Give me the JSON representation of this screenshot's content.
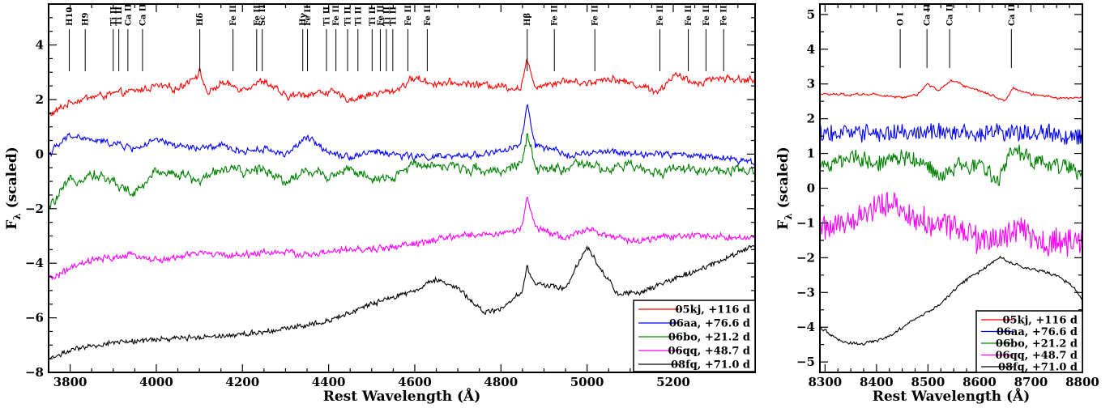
{
  "chart_data": [
    {
      "type": "line",
      "xlabel": "Rest Wavelength (Å)",
      "ylabel_main": "F",
      "ylabel_sub": "λ",
      "ylabel_suffix": " (scaled)",
      "xlim": [
        3750,
        5390
      ],
      "ylim": [
        -8,
        5.5
      ],
      "xticks": [
        3800,
        4000,
        4200,
        4400,
        4600,
        4800,
        5000,
        5200
      ],
      "yticks": [
        4,
        2,
        0,
        -2,
        -4,
        -6,
        -8
      ],
      "line_ids": [
        {
          "label": "H10",
          "x": 3798
        },
        {
          "label": "H9",
          "x": 3835
        },
        {
          "label": "Ti II",
          "x": 3900
        },
        {
          "label": "Ti II",
          "x": 3913
        },
        {
          "label": "Ca II",
          "x": 3934
        },
        {
          "label": "Ca II",
          "x": 3968
        },
        {
          "label": "Hδ",
          "x": 4101
        },
        {
          "label": "Fe II",
          "x": 4178
        },
        {
          "label": "Fe II",
          "x": 4233
        },
        {
          "label": "Sc II",
          "x": 4246
        },
        {
          "label": "Hγ",
          "x": 4340
        },
        {
          "label": "Fe II",
          "x": 4351
        },
        {
          "label": "Ti II",
          "x": 4395
        },
        {
          "label": "Fe II",
          "x": 4417
        },
        {
          "label": "Ti II",
          "x": 4444
        },
        {
          "label": "Ti II",
          "x": 4468
        },
        {
          "label": "Ti II",
          "x": 4501
        },
        {
          "label": "Fe II",
          "x": 4520
        },
        {
          "label": "Ti II",
          "x": 4534
        },
        {
          "label": "Ti II",
          "x": 4549
        },
        {
          "label": "Fe II",
          "x": 4584
        },
        {
          "label": "Fe II",
          "x": 4629
        },
        {
          "label": "Hβ",
          "x": 4861
        },
        {
          "label": "Fe II",
          "x": 4924
        },
        {
          "label": "Fe II",
          "x": 5018
        },
        {
          "label": "Fe II",
          "x": 5169
        },
        {
          "label": "Fe II",
          "x": 5235
        },
        {
          "label": "Fe II",
          "x": 5276
        },
        {
          "label": "Fe II",
          "x": 5317
        }
      ],
      "series": [
        {
          "name": "05kj, +116 d",
          "color": "#ff0000",
          "noise": 0.18,
          "freq": 0.55,
          "points": [
            [
              3750,
              1.4
            ],
            [
              3800,
              1.9
            ],
            [
              3850,
              2.1
            ],
            [
              3900,
              2.2
            ],
            [
              3950,
              2.3
            ],
            [
              4000,
              2.5
            ],
            [
              4050,
              2.4
            ],
            [
              4101,
              3.0
            ],
            [
              4120,
              2.2
            ],
            [
              4150,
              2.6
            ],
            [
              4200,
              2.4
            ],
            [
              4250,
              2.7
            ],
            [
              4300,
              2.1
            ],
            [
              4350,
              2.2
            ],
            [
              4400,
              2.3
            ],
            [
              4450,
              2.0
            ],
            [
              4500,
              2.2
            ],
            [
              4550,
              2.3
            ],
            [
              4600,
              2.8
            ],
            [
              4640,
              2.6
            ],
            [
              4700,
              2.6
            ],
            [
              4800,
              2.5
            ],
            [
              4845,
              2.4
            ],
            [
              4861,
              3.4
            ],
            [
              4880,
              2.5
            ],
            [
              4950,
              2.7
            ],
            [
              5000,
              2.6
            ],
            [
              5050,
              2.8
            ],
            [
              5100,
              2.6
            ],
            [
              5169,
              2.3
            ],
            [
              5200,
              2.9
            ],
            [
              5250,
              2.6
            ],
            [
              5300,
              2.8
            ],
            [
              5390,
              2.7
            ]
          ]
        },
        {
          "name": "06aa, +76.6 d",
          "color": "#0000ff",
          "noise": 0.16,
          "freq": 0.6,
          "points": [
            [
              3750,
              0.0
            ],
            [
              3800,
              0.7
            ],
            [
              3850,
              0.5
            ],
            [
              3900,
              0.4
            ],
            [
              3950,
              0.2
            ],
            [
              4000,
              0.5
            ],
            [
              4050,
              0.3
            ],
            [
              4100,
              0.2
            ],
            [
              4150,
              0.3
            ],
            [
              4200,
              0.1
            ],
            [
              4250,
              0.2
            ],
            [
              4300,
              0.0
            ],
            [
              4350,
              0.6
            ],
            [
              4400,
              0.1
            ],
            [
              4450,
              -0.1
            ],
            [
              4500,
              0.1
            ],
            [
              4550,
              0.0
            ],
            [
              4600,
              -0.1
            ],
            [
              4700,
              -0.1
            ],
            [
              4800,
              0.1
            ],
            [
              4845,
              0.3
            ],
            [
              4861,
              1.8
            ],
            [
              4880,
              0.3
            ],
            [
              4950,
              0.0
            ],
            [
              5000,
              0.0
            ],
            [
              5050,
              0.1
            ],
            [
              5100,
              0.0
            ],
            [
              5200,
              0.0
            ],
            [
              5300,
              -0.1
            ],
            [
              5390,
              -0.3
            ]
          ]
        },
        {
          "name": "06bo, +21.2 d",
          "color": "#008000",
          "noise": 0.3,
          "freq": 0.42,
          "points": [
            [
              3750,
              -2.0
            ],
            [
              3800,
              -1.0
            ],
            [
              3850,
              -0.7
            ],
            [
              3900,
              -1.0
            ],
            [
              3950,
              -1.5
            ],
            [
              4000,
              -0.6
            ],
            [
              4050,
              -0.7
            ],
            [
              4100,
              -1.0
            ],
            [
              4150,
              -0.5
            ],
            [
              4200,
              -0.7
            ],
            [
              4250,
              -0.5
            ],
            [
              4300,
              -1.0
            ],
            [
              4350,
              -0.6
            ],
            [
              4400,
              -0.8
            ],
            [
              4450,
              -0.5
            ],
            [
              4500,
              -1.0
            ],
            [
              4550,
              -0.9
            ],
            [
              4600,
              -0.3
            ],
            [
              4700,
              -0.5
            ],
            [
              4800,
              -0.6
            ],
            [
              4850,
              -0.3
            ],
            [
              4861,
              0.7
            ],
            [
              4880,
              -0.6
            ],
            [
              4950,
              -0.5
            ],
            [
              5000,
              -0.4
            ],
            [
              5050,
              -0.6
            ],
            [
              5100,
              -0.4
            ],
            [
              5150,
              -0.7
            ],
            [
              5200,
              -0.5
            ],
            [
              5300,
              -0.6
            ],
            [
              5390,
              -0.7
            ]
          ]
        },
        {
          "name": "06qq, +48.7 d",
          "color": "#ff00ff",
          "noise": 0.14,
          "freq": 0.7,
          "points": [
            [
              3750,
              -4.6
            ],
            [
              3800,
              -4.2
            ],
            [
              3850,
              -3.9
            ],
            [
              3900,
              -3.8
            ],
            [
              3950,
              -3.7
            ],
            [
              4000,
              -3.9
            ],
            [
              4050,
              -3.8
            ],
            [
              4100,
              -3.6
            ],
            [
              4150,
              -3.7
            ],
            [
              4200,
              -3.7
            ],
            [
              4250,
              -3.6
            ],
            [
              4300,
              -3.6
            ],
            [
              4350,
              -3.7
            ],
            [
              4400,
              -3.6
            ],
            [
              4450,
              -3.5
            ],
            [
              4500,
              -3.5
            ],
            [
              4550,
              -3.4
            ],
            [
              4600,
              -3.3
            ],
            [
              4700,
              -3.0
            ],
            [
              4800,
              -2.9
            ],
            [
              4845,
              -2.8
            ],
            [
              4861,
              -1.6
            ],
            [
              4880,
              -2.7
            ],
            [
              4950,
              -3.1
            ],
            [
              5000,
              -2.7
            ],
            [
              5050,
              -3.0
            ],
            [
              5100,
              -3.2
            ],
            [
              5200,
              -3.0
            ],
            [
              5300,
              -3.0
            ],
            [
              5390,
              -3.1
            ]
          ]
        },
        {
          "name": "08fq, +71.0 d",
          "color": "#000000",
          "noise": 0.1,
          "freq": 0.8,
          "points": [
            [
              3750,
              -7.5
            ],
            [
              3800,
              -7.2
            ],
            [
              3900,
              -6.9
            ],
            [
              4000,
              -6.8
            ],
            [
              4100,
              -6.7
            ],
            [
              4200,
              -6.6
            ],
            [
              4300,
              -6.4
            ],
            [
              4400,
              -6.1
            ],
            [
              4500,
              -5.5
            ],
            [
              4600,
              -5.0
            ],
            [
              4650,
              -4.6
            ],
            [
              4700,
              -4.9
            ],
            [
              4760,
              -5.8
            ],
            [
              4800,
              -5.7
            ],
            [
              4850,
              -5.0
            ],
            [
              4861,
              -4.1
            ],
            [
              4875,
              -4.7
            ],
            [
              4900,
              -4.8
            ],
            [
              4950,
              -4.9
            ],
            [
              5000,
              -3.4
            ],
            [
              5040,
              -4.4
            ],
            [
              5070,
              -5.1
            ],
            [
              5120,
              -5.1
            ],
            [
              5200,
              -4.6
            ],
            [
              5300,
              -4.0
            ],
            [
              5390,
              -3.3
            ]
          ]
        }
      ],
      "legend": {
        "placement": "bottom-right"
      }
    },
    {
      "type": "line",
      "xlabel": "Rest Wavelength (Å)",
      "ylabel_main": "F",
      "ylabel_sub": "λ",
      "ylabel_suffix": " (scaled)",
      "xlim": [
        8290,
        8800
      ],
      "ylim": [
        -5.3,
        5.3
      ],
      "xticks": [
        8300,
        8400,
        8500,
        8600,
        8700,
        8800
      ],
      "yticks": [
        5,
        4,
        3,
        2,
        1,
        0,
        -1,
        -2,
        -3,
        -4,
        -5
      ],
      "line_ids": [
        {
          "label": "O I",
          "x": 8446
        },
        {
          "label": "Ca II",
          "x": 8498
        },
        {
          "label": "Ca II",
          "x": 8542
        },
        {
          "label": "Ca II",
          "x": 8662
        }
      ],
      "series": [
        {
          "name": "05kj, +116 d",
          "color": "#ff0000",
          "noise": 0.05,
          "freq": 0.5,
          "points": [
            [
              8290,
              2.7
            ],
            [
              8350,
              2.7
            ],
            [
              8400,
              2.7
            ],
            [
              8450,
              2.6
            ],
            [
              8480,
              2.7
            ],
            [
              8500,
              3.0
            ],
            [
              8520,
              2.8
            ],
            [
              8545,
              3.1
            ],
            [
              8580,
              2.9
            ],
            [
              8620,
              2.7
            ],
            [
              8650,
              2.5
            ],
            [
              8665,
              2.9
            ],
            [
              8700,
              2.7
            ],
            [
              8750,
              2.6
            ],
            [
              8800,
              2.6
            ]
          ]
        },
        {
          "name": "06aa, +76.6 d",
          "color": "#0000ff",
          "noise": 0.25,
          "freq": 0.9,
          "points": [
            [
              8290,
              1.6
            ],
            [
              8400,
              1.6
            ],
            [
              8500,
              1.6
            ],
            [
              8600,
              1.6
            ],
            [
              8700,
              1.6
            ],
            [
              8800,
              1.5
            ]
          ]
        },
        {
          "name": "06bo, +21.2 d",
          "color": "#008000",
          "noise": 0.25,
          "freq": 0.8,
          "points": [
            [
              8290,
              0.6
            ],
            [
              8350,
              0.9
            ],
            [
              8400,
              0.7
            ],
            [
              8450,
              0.9
            ],
            [
              8500,
              0.7
            ],
            [
              8520,
              0.3
            ],
            [
              8560,
              0.7
            ],
            [
              8600,
              0.6
            ],
            [
              8640,
              0.2
            ],
            [
              8660,
              1.1
            ],
            [
              8700,
              0.8
            ],
            [
              8750,
              0.7
            ],
            [
              8800,
              0.4
            ]
          ]
        },
        {
          "name": "06qq, +48.7 d",
          "color": "#ff00ff",
          "noise": 0.35,
          "freq": 1.0,
          "points": [
            [
              8290,
              -1.2
            ],
            [
              8350,
              -0.9
            ],
            [
              8400,
              -0.6
            ],
            [
              8430,
              -0.4
            ],
            [
              8460,
              -0.8
            ],
            [
              8500,
              -1.0
            ],
            [
              8560,
              -1.2
            ],
            [
              8600,
              -1.5
            ],
            [
              8640,
              -1.5
            ],
            [
              8680,
              -1.2
            ],
            [
              8720,
              -1.6
            ],
            [
              8760,
              -1.5
            ],
            [
              8800,
              -1.6
            ]
          ]
        },
        {
          "name": "08fq, +71.0 d",
          "color": "#000000",
          "noise": 0.06,
          "freq": 0.6,
          "points": [
            [
              8290,
              -4.0
            ],
            [
              8330,
              -4.4
            ],
            [
              8370,
              -4.5
            ],
            [
              8420,
              -4.3
            ],
            [
              8470,
              -3.8
            ],
            [
              8520,
              -3.4
            ],
            [
              8560,
              -2.8
            ],
            [
              8600,
              -2.4
            ],
            [
              8640,
              -2.0
            ],
            [
              8670,
              -2.2
            ],
            [
              8700,
              -2.3
            ],
            [
              8750,
              -2.5
            ],
            [
              8780,
              -2.8
            ],
            [
              8800,
              -3.2
            ]
          ]
        }
      ],
      "legend": {
        "placement": "bottom-right"
      }
    }
  ]
}
